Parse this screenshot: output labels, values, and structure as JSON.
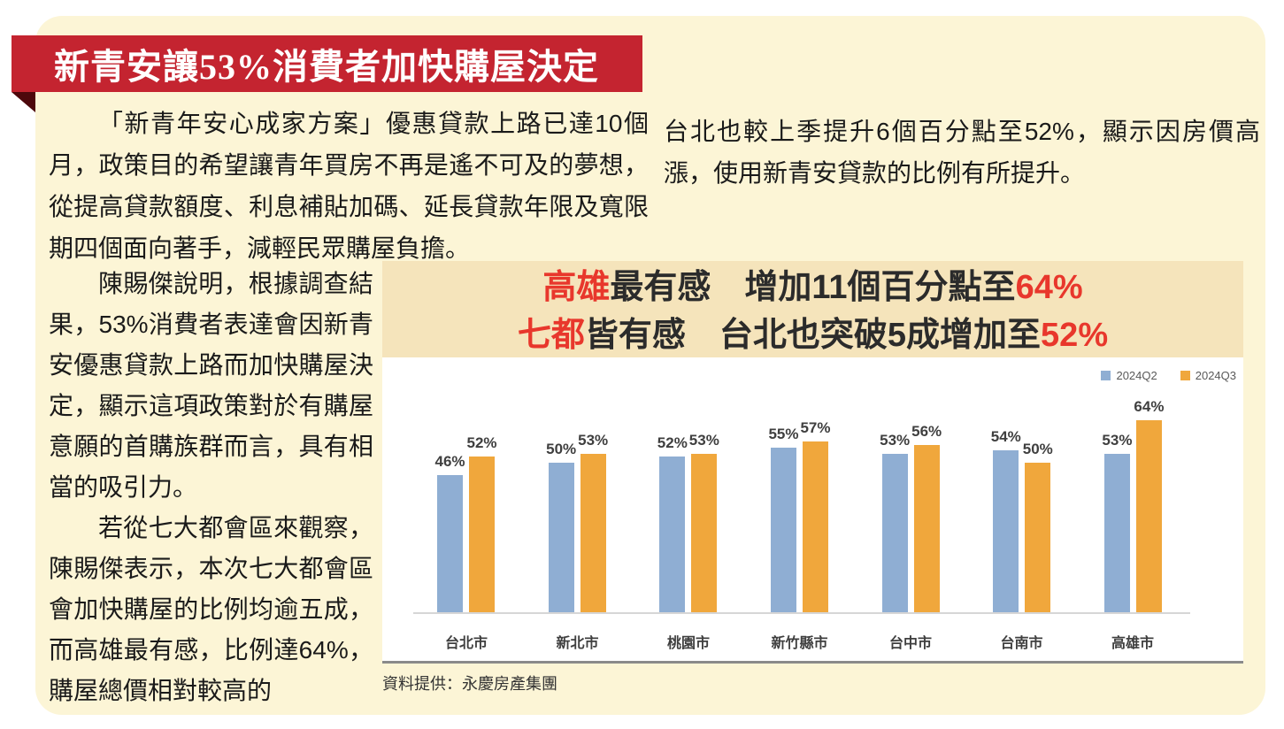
{
  "page": {
    "title": "新青安讓53%消費者加快購屋決定",
    "source": "資料提供：永慶房產集團"
  },
  "article": {
    "intro": "「新青年安心成家方案」優惠貸款上路已達10個月，政策目的希望讓青年買房不再是遙不可及的夢想，從提高貸款額度、利息補貼加碼、延長貸款年限及寬限期四個面向著手，減輕民眾購屋負擔。",
    "continuation_right": "台北也較上季提升6個百分點至52%，顯示因房價高漲，使用新青安貸款的比例有所提升。",
    "survey": "陳賜傑說明，根據調查結果，53%消費者表達會因新青安優惠貸款上路而加快購屋決定，顯示這項政策對於有購屋意願的首購族群而言，具有相當的吸引力。",
    "seven_metro": "若從七大都會區來觀察，陳賜傑表示，本次七大都會區會加快購屋的比例均逾五成，而高雄最有感，比例達64%，購屋總價相對較高的"
  },
  "chart_data": {
    "type": "bar",
    "title_lines": [
      {
        "segments": [
          {
            "text": "高雄",
            "color": "#E8372C"
          },
          {
            "text": "最有感　增加11個百分點至",
            "color": "#2B2B2B"
          },
          {
            "text": "64%",
            "color": "#E8372C"
          }
        ]
      },
      {
        "segments": [
          {
            "text": "七都",
            "color": "#E8372C"
          },
          {
            "text": "皆有感　台北也突破5成增加至",
            "color": "#2B2B2B"
          },
          {
            "text": "52%",
            "color": "#E8372C"
          }
        ]
      }
    ],
    "categories": [
      "台北市",
      "新北市",
      "桃園市",
      "新竹縣市",
      "台中市",
      "台南市",
      "高雄市"
    ],
    "series": [
      {
        "name": "2024Q2",
        "color": "#8FAED3",
        "values": [
          46,
          50,
          52,
          55,
          53,
          54,
          53
        ]
      },
      {
        "name": "2024Q3",
        "color": "#F0A73C",
        "values": [
          52,
          53,
          53,
          57,
          56,
          50,
          64
        ]
      }
    ],
    "unit": "%",
    "ylim": [
      0,
      70
    ],
    "grid": false,
    "legend_position": "top-right",
    "source": "資料提供：永慶房產集團"
  },
  "colors": {
    "banner_red": "#C42430",
    "fold_maroon": "#4D080C",
    "card_cream": "#FCF5D6",
    "chart_header_tan": "#F5E4BB",
    "headline_red": "#E8372C",
    "q2_blue": "#8FAED3",
    "q3_orange": "#F0A73C"
  }
}
